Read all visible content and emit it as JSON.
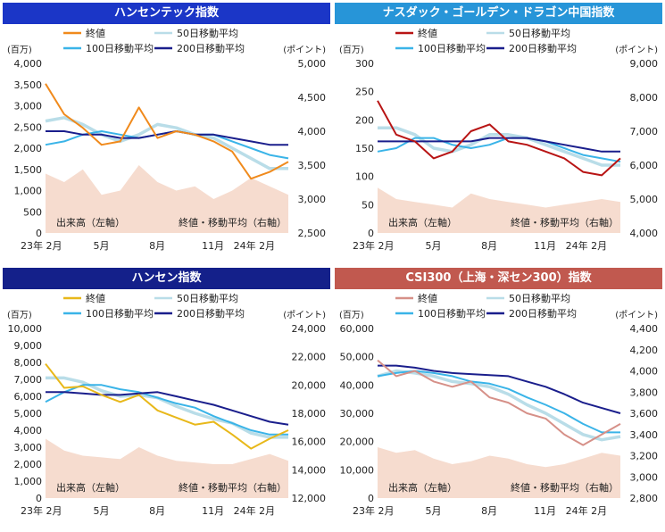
{
  "colors": {
    "volume": "#f6dccf",
    "ma50": "#b9dde8",
    "ma100": "#3ab4e8",
    "ma200": "#1a1e8c"
  },
  "panels": [
    {
      "id": "hsi-tech",
      "title": "ハンセンテック指数",
      "header_color": "#1b36c7",
      "left_unit": "(百万)",
      "right_unit": "(ポイント)",
      "left_ticks": [
        "4,000",
        "3,500",
        "3,000",
        "2,500",
        "2,000",
        "1,500",
        "1,000",
        "500",
        "0"
      ],
      "right_ticks": [
        "5,000",
        "4,500",
        "4,000",
        "3,500",
        "3,000",
        "2,500"
      ],
      "x_ticks": [
        "23年 2月",
        "5月",
        "8月",
        "11月",
        "24年 2月"
      ],
      "legend": {
        "close": "終値",
        "ma50": "50日移動平均",
        "ma100": "100日移動平均",
        "ma200": "200日移動平均"
      },
      "volume_label": "出来高（左軸）",
      "price_label": "終値・移動平均（右軸）"
    },
    {
      "id": "nasdaq-golden-dragon",
      "title": "ナスダック・ゴールデン・ドラゴン中国指数",
      "header_color": "#2795d8",
      "left_unit": "(百万)",
      "right_unit": "(ポイント)",
      "left_ticks": [
        "300",
        "250",
        "200",
        "150",
        "100",
        "50",
        "0"
      ],
      "right_ticks": [
        "9,000",
        "8,000",
        "7,000",
        "6,000",
        "5,000",
        "4,000"
      ],
      "x_ticks": [
        "23年 2月",
        "5月",
        "8月",
        "11月",
        "24年 2月"
      ],
      "legend": {
        "close": "終値",
        "ma50": "50日移動平均",
        "ma100": "100日移動平均",
        "ma200": "200日移動平均"
      },
      "volume_label": "出来高（左軸）",
      "price_label": "終値・移動平均（右軸）"
    },
    {
      "id": "hang-seng",
      "title": "ハンセン指数",
      "header_color": "#14208a",
      "left_unit": "(百万)",
      "right_unit": "(ポイント)",
      "left_ticks": [
        "10,000",
        "9,000",
        "8,000",
        "7,000",
        "6,000",
        "5,000",
        "4,000",
        "3,000",
        "2,000",
        "1,000",
        "0"
      ],
      "right_ticks": [
        "24,000",
        "22,000",
        "20,000",
        "18,000",
        "16,000",
        "14,000",
        "12,000"
      ],
      "x_ticks": [
        "23年 2月",
        "5月",
        "8月",
        "11月",
        "24年 2月"
      ],
      "legend": {
        "close": "終値",
        "ma50": "50日移動平均",
        "ma100": "100日移動平均",
        "ma200": "200日移動平均"
      },
      "volume_label": "出来高（左軸）",
      "price_label": "終値・移動平均（右軸）"
    },
    {
      "id": "csi300",
      "title": "CSI300（上海・深セン300）指数",
      "header_color": "#c1594f",
      "left_unit": "(百万)",
      "right_unit": "(ポイント)",
      "left_ticks": [
        "60,000",
        "50,000",
        "40,000",
        "30,000",
        "20,000",
        "10,000",
        "0"
      ],
      "right_ticks": [
        "4,400",
        "4,200",
        "4,000",
        "3,800",
        "3,600",
        "3,400",
        "3,200",
        "3,000",
        "2,800"
      ],
      "x_ticks": [
        "23年 2月",
        "5月",
        "8月",
        "11月",
        "24年 2月"
      ],
      "legend": {
        "close": "終値",
        "ma50": "50日移動平均",
        "ma100": "100日移動平均",
        "ma200": "200日移動平均"
      },
      "volume_label": "出来高（左軸）",
      "price_label": "終値・移動平均（右軸）"
    }
  ],
  "chart_data": [
    {
      "type": "line",
      "title": "ハンセンテック指数",
      "x": [
        "2023-02",
        "2023-03",
        "2023-04",
        "2023-05",
        "2023-06",
        "2023-07",
        "2023-08",
        "2023-09",
        "2023-10",
        "2023-11",
        "2023-12",
        "2024-01",
        "2024-02",
        "2024-03"
      ],
      "close_color": "#f08a1c",
      "y_left_range": [
        0,
        4000
      ],
      "y_right_range": [
        2500,
        5000
      ],
      "series": [
        {
          "name": "終値",
          "axis": "right",
          "values": [
            4700,
            4250,
            4050,
            3800,
            3850,
            4350,
            3900,
            4000,
            3950,
            3850,
            3700,
            3300,
            3400,
            3550
          ]
        },
        {
          "name": "50日移動平均",
          "axis": "right",
          "values": [
            4150,
            4200,
            4100,
            3950,
            3850,
            3950,
            4100,
            4050,
            3950,
            3900,
            3750,
            3600,
            3450,
            3450
          ]
        },
        {
          "name": "100日移動平均",
          "axis": "right",
          "values": [
            3800,
            3850,
            3950,
            4000,
            3950,
            3900,
            3950,
            4000,
            3950,
            3950,
            3850,
            3750,
            3650,
            3600
          ]
        },
        {
          "name": "200日移動平均",
          "axis": "right",
          "values": [
            4000,
            4000,
            3950,
            3950,
            3900,
            3900,
            3950,
            4000,
            3950,
            3950,
            3900,
            3850,
            3800,
            3800
          ]
        },
        {
          "name": "出来高",
          "axis": "left",
          "type": "area",
          "values": [
            1400,
            1200,
            1500,
            900,
            1000,
            1600,
            1200,
            1000,
            1100,
            800,
            1000,
            1300,
            1100,
            900
          ]
        }
      ]
    },
    {
      "type": "line",
      "title": "ナスダック・ゴールデン・ドラゴン中国指数",
      "x": [
        "2023-02",
        "2023-03",
        "2023-04",
        "2023-05",
        "2023-06",
        "2023-07",
        "2023-08",
        "2023-09",
        "2023-10",
        "2023-11",
        "2023-12",
        "2024-01",
        "2024-02",
        "2024-03"
      ],
      "close_color": "#b81414",
      "y_left_range": [
        0,
        300
      ],
      "y_right_range": [
        4000,
        9000
      ],
      "series": [
        {
          "name": "終値",
          "axis": "right",
          "values": [
            7900,
            6900,
            6700,
            6200,
            6400,
            7000,
            7200,
            6700,
            6600,
            6400,
            6200,
            5800,
            5700,
            6200
          ]
        },
        {
          "name": "50日移動平均",
          "axis": "right",
          "values": [
            7100,
            7100,
            6900,
            6500,
            6400,
            6600,
            6900,
            6900,
            6800,
            6600,
            6400,
            6200,
            6000,
            6000
          ]
        },
        {
          "name": "100日移動平均",
          "axis": "right",
          "values": [
            6400,
            6500,
            6800,
            6800,
            6600,
            6500,
            6600,
            6800,
            6800,
            6700,
            6500,
            6300,
            6200,
            6100
          ]
        },
        {
          "name": "200日移動平均",
          "axis": "right",
          "values": [
            6700,
            6700,
            6700,
            6700,
            6700,
            6700,
            6800,
            6800,
            6800,
            6700,
            6600,
            6500,
            6400,
            6400
          ]
        },
        {
          "name": "出来高",
          "axis": "left",
          "type": "area",
          "values": [
            80,
            60,
            55,
            50,
            45,
            70,
            60,
            55,
            50,
            45,
            50,
            55,
            60,
            55
          ]
        }
      ]
    },
    {
      "type": "line",
      "title": "ハンセン指数",
      "x": [
        "2023-02",
        "2023-03",
        "2023-04",
        "2023-05",
        "2023-06",
        "2023-07",
        "2023-08",
        "2023-09",
        "2023-10",
        "2023-11",
        "2023-12",
        "2024-01",
        "2024-02",
        "2024-03"
      ],
      "close_color": "#e8b81a",
      "y_left_range": [
        0,
        10000
      ],
      "y_right_range": [
        12000,
        24000
      ],
      "series": [
        {
          "name": "終値",
          "axis": "right",
          "values": [
            21500,
            19800,
            19900,
            19300,
            18800,
            19300,
            18200,
            17700,
            17200,
            17400,
            16500,
            15500,
            16200,
            16800
          ]
        },
        {
          "name": "50日移動平均",
          "axis": "right",
          "values": [
            20500,
            20500,
            20200,
            19600,
            19200,
            19300,
            19100,
            18500,
            18000,
            17600,
            17300,
            16600,
            16300,
            16300
          ]
        },
        {
          "name": "100日移動平均",
          "axis": "right",
          "values": [
            18800,
            19500,
            20000,
            20000,
            19700,
            19500,
            19100,
            18700,
            18400,
            17800,
            17300,
            16800,
            16500,
            16500
          ]
        },
        {
          "name": "200日移動平均",
          "axis": "right",
          "values": [
            19500,
            19500,
            19400,
            19300,
            19300,
            19400,
            19500,
            19200,
            18900,
            18600,
            18200,
            17800,
            17400,
            17200
          ]
        },
        {
          "name": "出来高",
          "axis": "left",
          "type": "area",
          "values": [
            3500,
            2800,
            2500,
            2400,
            2300,
            3000,
            2500,
            2200,
            2100,
            2000,
            2000,
            2300,
            2600,
            2200
          ]
        }
      ]
    },
    {
      "type": "line",
      "title": "CSI300（上海・深セン300）指数",
      "x": [
        "2023-02",
        "2023-03",
        "2023-04",
        "2023-05",
        "2023-06",
        "2023-07",
        "2023-08",
        "2023-09",
        "2023-10",
        "2023-11",
        "2023-12",
        "2024-01",
        "2024-02",
        "2024-03"
      ],
      "close_color": "#d69088",
      "y_left_range": [
        0,
        60000
      ],
      "y_right_range": [
        2800,
        4400
      ],
      "series": [
        {
          "name": "終値",
          "axis": "right",
          "values": [
            4100,
            3950,
            4000,
            3900,
            3850,
            3900,
            3750,
            3700,
            3600,
            3550,
            3400,
            3300,
            3400,
            3500
          ]
        },
        {
          "name": "50日移動平均",
          "axis": "right",
          "values": [
            3950,
            4000,
            3980,
            3950,
            3900,
            3880,
            3850,
            3780,
            3680,
            3600,
            3500,
            3400,
            3350,
            3380
          ]
        },
        {
          "name": "100日移動平均",
          "axis": "right",
          "values": [
            3950,
            3980,
            4000,
            3980,
            3950,
            3900,
            3880,
            3830,
            3750,
            3680,
            3600,
            3500,
            3420,
            3420
          ]
        },
        {
          "name": "200日移動平均",
          "axis": "right",
          "values": [
            4050,
            4050,
            4030,
            4000,
            3980,
            3970,
            3960,
            3950,
            3900,
            3850,
            3780,
            3700,
            3650,
            3600
          ]
        },
        {
          "name": "出来高",
          "axis": "left",
          "type": "area",
          "values": [
            18000,
            16000,
            17000,
            14000,
            12000,
            13000,
            15000,
            14000,
            12000,
            11000,
            12000,
            14000,
            16000,
            15000
          ]
        }
      ]
    }
  ]
}
